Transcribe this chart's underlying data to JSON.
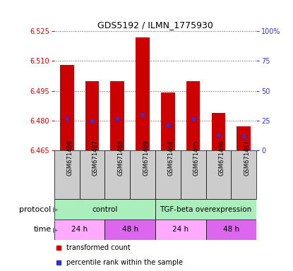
{
  "title": "GDS5192 / ILMN_1775930",
  "samples": [
    "GSM671486",
    "GSM671487",
    "GSM671488",
    "GSM671489",
    "GSM671494",
    "GSM671495",
    "GSM671496",
    "GSM671497"
  ],
  "bar_bottoms": [
    6.465,
    6.465,
    6.465,
    6.465,
    6.465,
    6.465,
    6.465,
    6.465
  ],
  "bar_tops": [
    6.508,
    6.5,
    6.5,
    6.522,
    6.494,
    6.5,
    6.484,
    6.477
  ],
  "percentile_values": [
    6.481,
    6.48,
    6.481,
    6.483,
    6.478,
    6.481,
    6.473,
    6.472
  ],
  "ylim": [
    6.465,
    6.525
  ],
  "yticks": [
    6.465,
    6.48,
    6.495,
    6.51,
    6.525
  ],
  "right_yticks": [
    0,
    25,
    50,
    75,
    100
  ],
  "right_ylim": [
    0,
    100
  ],
  "bar_color": "#cc0000",
  "percentile_color": "#3333cc",
  "bar_width": 0.55,
  "protocol_groups": [
    {
      "label": "control",
      "start": 0,
      "end": 4,
      "color": "#aaeebb"
    },
    {
      "label": "TGF-beta overexpression",
      "start": 4,
      "end": 8,
      "color": "#aaeebb"
    }
  ],
  "time_groups": [
    {
      "label": "24 h",
      "start": 0,
      "end": 2,
      "color": "#ffaaff"
    },
    {
      "label": "48 h",
      "start": 2,
      "end": 4,
      "color": "#dd66ee"
    },
    {
      "label": "24 h",
      "start": 4,
      "end": 6,
      "color": "#ffaaff"
    },
    {
      "label": "48 h",
      "start": 6,
      "end": 8,
      "color": "#dd66ee"
    }
  ],
  "legend_items": [
    {
      "label": "transformed count",
      "color": "#cc0000",
      "marker": "s"
    },
    {
      "label": "percentile rank within the sample",
      "color": "#3333cc",
      "marker": "s"
    }
  ],
  "protocol_label": "protocol",
  "time_label": "time",
  "left_axis_color": "#cc0000",
  "right_axis_color": "#3333cc",
  "grid_linestyle": ":",
  "grid_color": "#555555",
  "sample_box_color": "#cccccc",
  "fig_width": 4.15,
  "fig_height": 3.84
}
